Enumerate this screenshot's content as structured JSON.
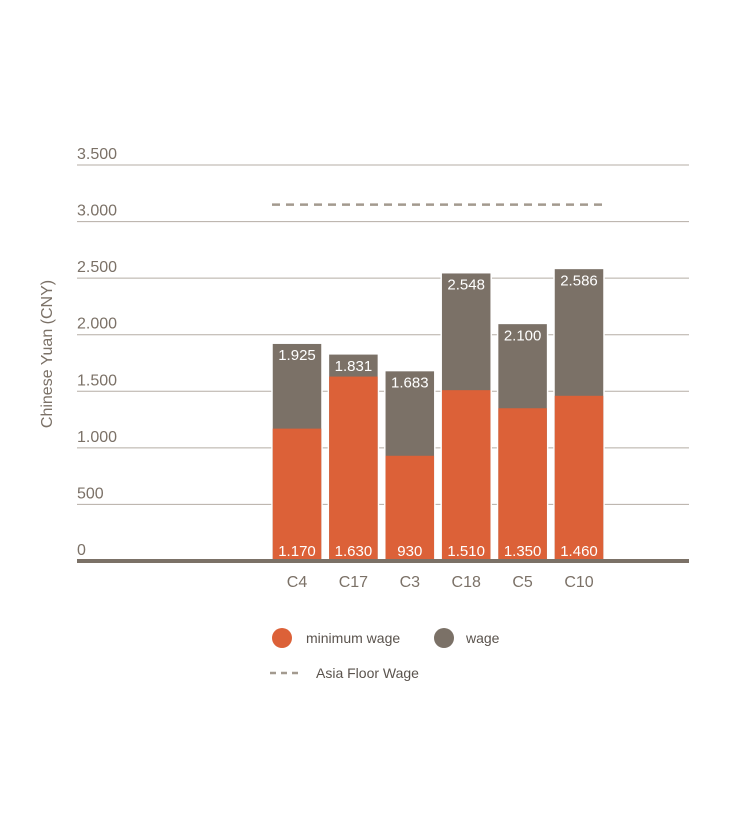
{
  "chart_data": {
    "type": "bar",
    "stacked": false,
    "categories": [
      "C4",
      "C17",
      "C3",
      "C18",
      "C5",
      "C10"
    ],
    "series": [
      {
        "name": "wage",
        "color": "#7b7167",
        "values": [
          1925,
          1831,
          1683,
          2548,
          2100,
          2586
        ],
        "labels": [
          "1.925",
          "1.831",
          "1.683",
          "2.548",
          "2.100",
          "2.586"
        ]
      },
      {
        "name": "minimum wage",
        "color": "#dc6138",
        "values": [
          1170,
          1630,
          930,
          1510,
          1350,
          1460
        ],
        "labels": [
          "1.170",
          "1.630",
          "930",
          "1.510",
          "1.350",
          "1.460"
        ]
      }
    ],
    "reference_line": {
      "name": "Asia Floor Wage",
      "value": 3150,
      "color": "#a39a8f",
      "style": "dashed"
    },
    "ylabel": "Chinese Yuan (CNY)",
    "ylim": [
      0,
      3500
    ],
    "yticks": [
      0,
      500,
      1000,
      1500,
      2000,
      2500,
      3000,
      3500
    ],
    "ytick_labels": [
      "0",
      "500",
      "1.000",
      "1.500",
      "2.000",
      "2.500",
      "3.000",
      "3.500"
    ],
    "grid": true,
    "legend_position": "bottom"
  }
}
